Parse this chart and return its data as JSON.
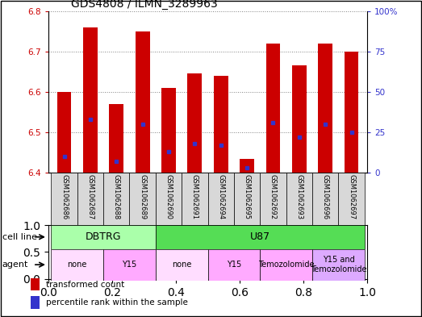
{
  "title": "GDS4808 / ILMN_3289963",
  "samples": [
    "GSM1062686",
    "GSM1062687",
    "GSM1062688",
    "GSM1062689",
    "GSM1062690",
    "GSM1062691",
    "GSM1062694",
    "GSM1062695",
    "GSM1062692",
    "GSM1062693",
    "GSM1062696",
    "GSM1062697"
  ],
  "transformed_count": [
    6.6,
    6.76,
    6.57,
    6.75,
    6.61,
    6.645,
    6.64,
    6.435,
    6.72,
    6.665,
    6.72,
    6.7
  ],
  "percentile_rank": [
    10,
    33,
    7,
    30,
    13,
    18,
    17,
    3,
    31,
    22,
    30,
    25
  ],
  "ymin": 6.4,
  "ymax": 6.8,
  "y2min": 0,
  "y2max": 100,
  "yticks": [
    6.4,
    6.5,
    6.6,
    6.7,
    6.8
  ],
  "y2ticks": [
    0,
    25,
    50,
    75,
    100
  ],
  "y2ticklabels": [
    "0",
    "25",
    "50",
    "75",
    "100%"
  ],
  "bar_color": "#cc0000",
  "dot_color": "#3333cc",
  "cell_line_label": "cell line",
  "agent_label": "agent",
  "cell_lines": [
    {
      "label": "DBTRG",
      "start": 0,
      "end": 4,
      "color": "#aaffaa"
    },
    {
      "label": "U87",
      "start": 4,
      "end": 12,
      "color": "#55dd55"
    }
  ],
  "agents": [
    {
      "label": "none",
      "start": 0,
      "end": 2,
      "color": "#ffddff"
    },
    {
      "label": "Y15",
      "start": 2,
      "end": 4,
      "color": "#ffaaff"
    },
    {
      "label": "none",
      "start": 4,
      "end": 6,
      "color": "#ffddff"
    },
    {
      "label": "Y15",
      "start": 6,
      "end": 8,
      "color": "#ffaaff"
    },
    {
      "label": "Temozolomide",
      "start": 8,
      "end": 10,
      "color": "#ffaaff"
    },
    {
      "label": "Y15 and\nTemozolomide",
      "start": 10,
      "end": 12,
      "color": "#ddaaff"
    }
  ],
  "legend_items": [
    {
      "color": "#cc0000",
      "label": "transformed count"
    },
    {
      "color": "#3333cc",
      "label": "percentile rank within the sample"
    }
  ],
  "axis_label_color_left": "#cc0000",
  "axis_label_color_right": "#3333cc",
  "bar_width": 0.55,
  "background_color": "#ffffff",
  "fig_width": 5.23,
  "fig_height": 3.93,
  "dpi": 100
}
